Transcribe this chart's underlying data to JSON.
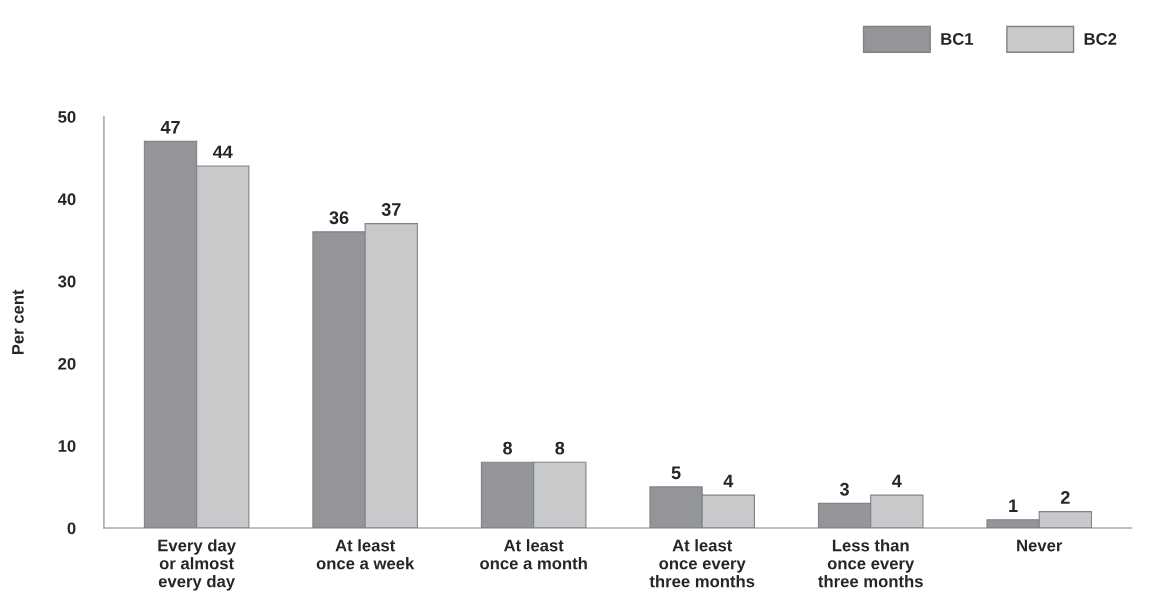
{
  "chart_data": {
    "type": "bar",
    "ylabel": "Per cent",
    "categories": [
      "Every day\nor almost\nevery day",
      "At least\nonce a week",
      "At least\nonce a month",
      "At least\nonce every\nthree months",
      "Less than\nonce every\nthree months",
      "Never"
    ],
    "series": [
      {
        "name": "BC1",
        "color": "#939598",
        "values": [
          47,
          36,
          8,
          5,
          3,
          1
        ]
      },
      {
        "name": "BC2",
        "color": "#c8c9cb",
        "values": [
          44,
          37,
          8,
          4,
          4,
          2
        ]
      }
    ],
    "ylim": [
      0,
      50
    ],
    "yticks": [
      0,
      10,
      20,
      30,
      40,
      50
    ],
    "data_labels": true,
    "grid": false,
    "legend": "top right"
  }
}
